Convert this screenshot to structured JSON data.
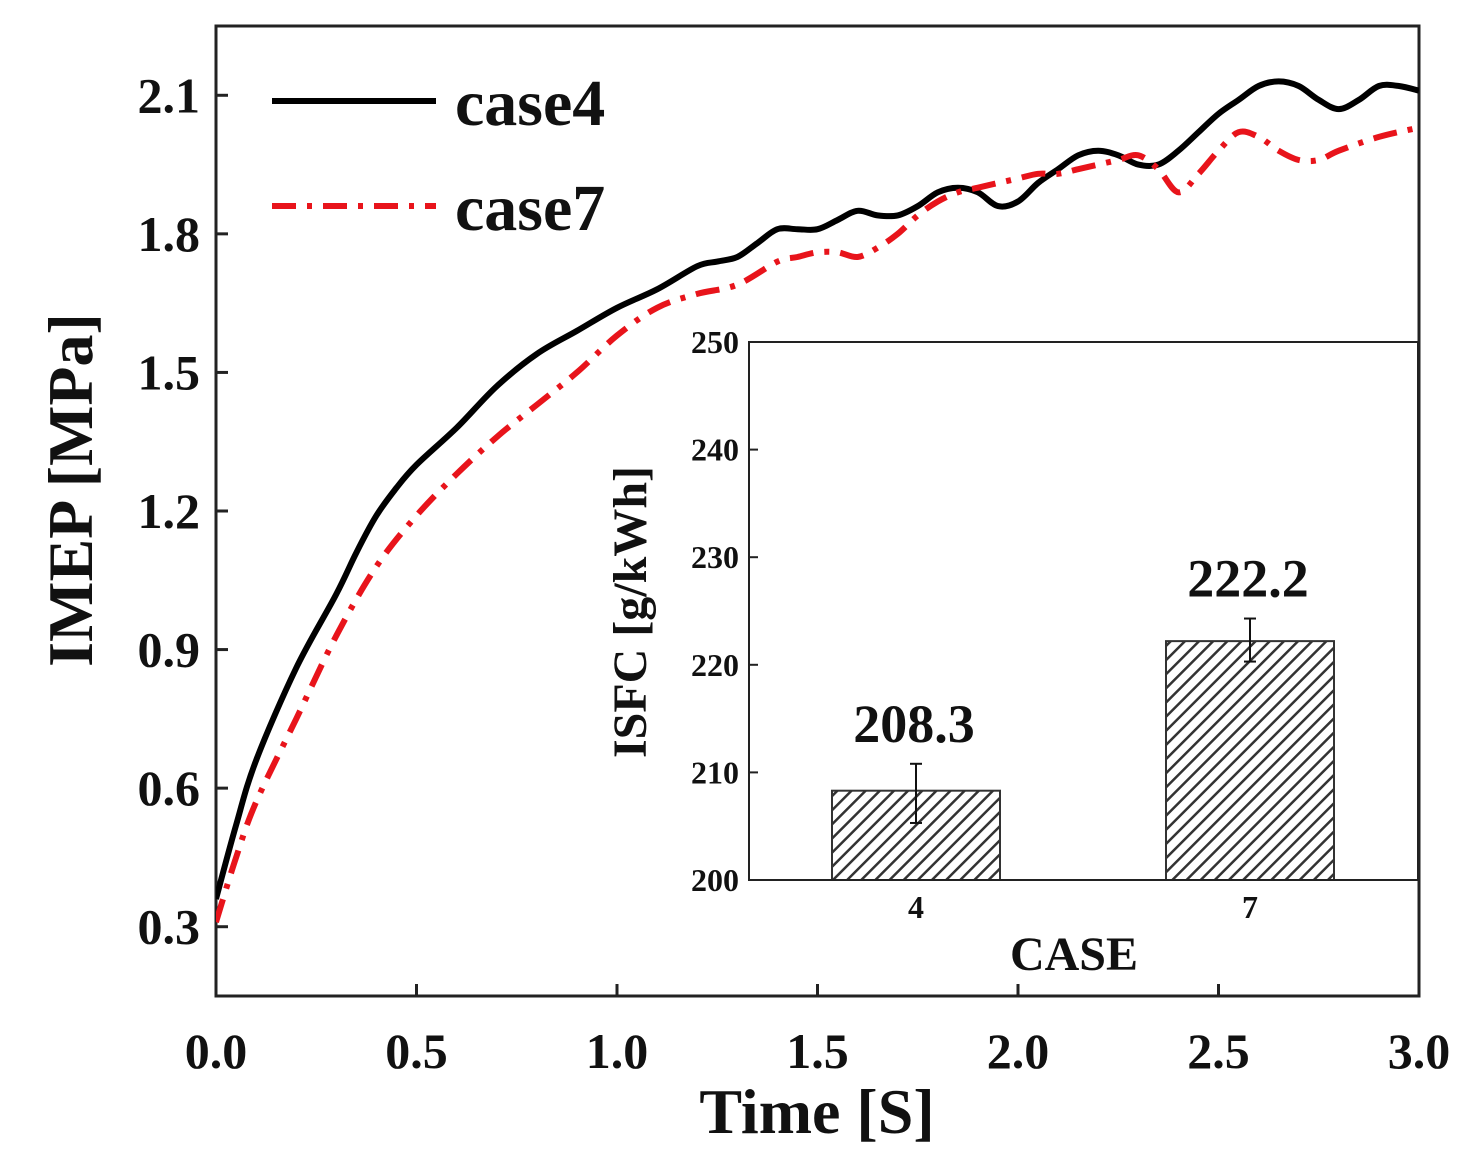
{
  "chart_data": [
    {
      "type": "line",
      "xlabel": "Time [S]",
      "ylabel": "IMEP [MPa]",
      "xlim": [
        0.0,
        3.0
      ],
      "ylim": [
        0.15,
        2.25
      ],
      "xticks": [
        "0.0",
        "0.5",
        "1.0",
        "1.5",
        "2.0",
        "2.5",
        "3.0"
      ],
      "yticks": [
        "0.3",
        "0.6",
        "0.9",
        "1.2",
        "1.5",
        "1.8",
        "2.1"
      ],
      "legend_position": "top-left",
      "series": [
        {
          "name": "case4",
          "color": "#000000",
          "style": "solid",
          "x": [
            0.0,
            0.05,
            0.1,
            0.2,
            0.3,
            0.35,
            0.4,
            0.45,
            0.5,
            0.6,
            0.7,
            0.8,
            0.9,
            1.0,
            1.1,
            1.2,
            1.25,
            1.3,
            1.35,
            1.4,
            1.45,
            1.5,
            1.55,
            1.6,
            1.65,
            1.7,
            1.75,
            1.8,
            1.85,
            1.9,
            1.95,
            2.0,
            2.05,
            2.1,
            2.15,
            2.2,
            2.25,
            2.3,
            2.35,
            2.4,
            2.45,
            2.5,
            2.55,
            2.6,
            2.65,
            2.7,
            2.75,
            2.8,
            2.85,
            2.9,
            2.95,
            3.0
          ],
          "y": [
            0.36,
            0.52,
            0.66,
            0.86,
            1.02,
            1.11,
            1.19,
            1.25,
            1.3,
            1.38,
            1.47,
            1.54,
            1.59,
            1.64,
            1.68,
            1.73,
            1.74,
            1.75,
            1.78,
            1.81,
            1.81,
            1.81,
            1.83,
            1.85,
            1.84,
            1.84,
            1.86,
            1.89,
            1.9,
            1.89,
            1.86,
            1.87,
            1.91,
            1.94,
            1.97,
            1.98,
            1.97,
            1.95,
            1.95,
            1.98,
            2.02,
            2.06,
            2.09,
            2.12,
            2.13,
            2.12,
            2.09,
            2.07,
            2.09,
            2.12,
            2.12,
            2.11
          ]
        },
        {
          "name": "case7",
          "color": "#e8141b",
          "style": "dashdot",
          "x": [
            0.0,
            0.05,
            0.1,
            0.2,
            0.3,
            0.4,
            0.5,
            0.6,
            0.7,
            0.8,
            0.9,
            1.0,
            1.1,
            1.2,
            1.3,
            1.4,
            1.45,
            1.5,
            1.55,
            1.6,
            1.65,
            1.7,
            1.75,
            1.8,
            1.85,
            1.9,
            1.95,
            2.0,
            2.05,
            2.1,
            2.15,
            2.2,
            2.25,
            2.3,
            2.35,
            2.4,
            2.45,
            2.5,
            2.55,
            2.6,
            2.65,
            2.7,
            2.75,
            2.8,
            2.9,
            3.0
          ],
          "y": [
            0.31,
            0.45,
            0.57,
            0.75,
            0.93,
            1.08,
            1.19,
            1.28,
            1.36,
            1.43,
            1.5,
            1.58,
            1.64,
            1.67,
            1.69,
            1.74,
            1.75,
            1.76,
            1.76,
            1.75,
            1.77,
            1.8,
            1.84,
            1.87,
            1.89,
            1.9,
            1.91,
            1.92,
            1.93,
            1.93,
            1.94,
            1.95,
            1.96,
            1.97,
            1.94,
            1.89,
            1.93,
            1.98,
            2.02,
            2.01,
            1.98,
            1.96,
            1.96,
            1.98,
            2.01,
            2.03
          ]
        }
      ]
    },
    {
      "type": "bar",
      "position": "inset",
      "xlabel": "CASE",
      "ylabel": "ISFC [g/kWh]",
      "ylim": [
        200,
        250
      ],
      "yticks": [
        "200",
        "210",
        "220",
        "230",
        "240",
        "250"
      ],
      "categories": [
        "4",
        "7"
      ],
      "values": [
        208.3,
        222.2
      ],
      "value_labels": [
        "208.3",
        "222.2"
      ],
      "error_low": [
        205.3,
        220.3
      ],
      "error_high": [
        210.8,
        224.3
      ],
      "hatch": "diagonal",
      "bar_color": "#333333"
    }
  ]
}
